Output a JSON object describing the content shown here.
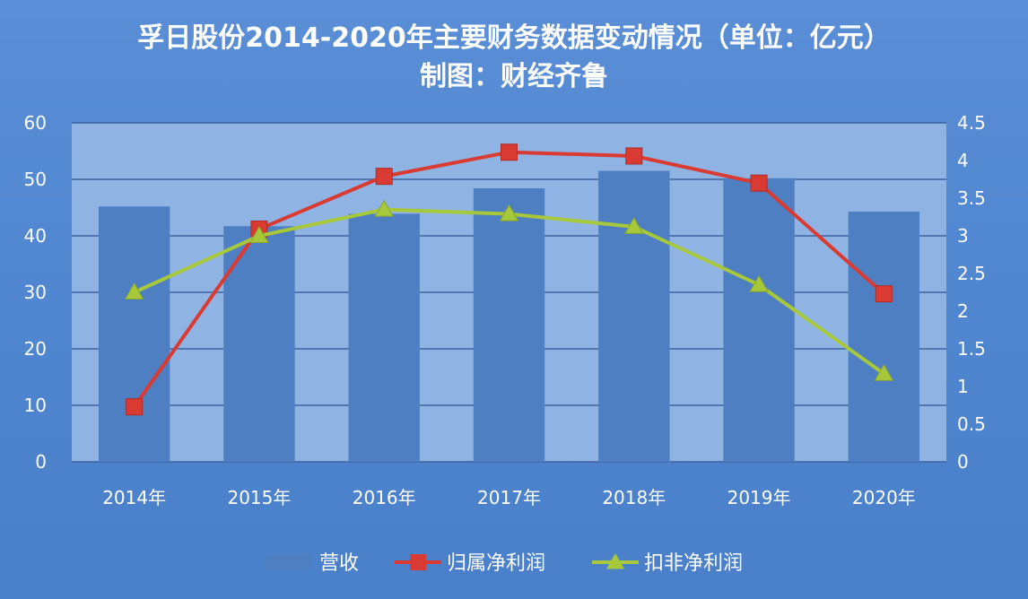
{
  "colors": {
    "page_bg": "#5588d0",
    "plot_bg": "#8fb3e3",
    "bar": "#4e7fc2",
    "line_red": "#d93b32",
    "line_green": "#a7c83b",
    "grid": "#3f63a0",
    "text": "#ffffff"
  },
  "chart_data": {
    "type": "bar",
    "title": "孚日股份2014-2020年主要财务数据变动情况（单位：亿元）",
    "subtitle": "制图：财经齐鲁",
    "categories": [
      "2014年",
      "2015年",
      "2016年",
      "2017年",
      "2018年",
      "2019年",
      "2020年"
    ],
    "series": [
      {
        "name": "营收",
        "type": "bar",
        "axis": "left",
        "values": [
          45.2,
          41.7,
          43.9,
          48.4,
          51.5,
          50.2,
          44.3
        ]
      },
      {
        "name": "归属净利润",
        "type": "line",
        "marker": "square",
        "axis": "right",
        "values": [
          0.73,
          3.09,
          3.79,
          4.11,
          4.06,
          3.7,
          2.23
        ]
      },
      {
        "name": "扣非净利润",
        "type": "line",
        "marker": "triangle",
        "axis": "right",
        "values": [
          2.25,
          3.0,
          3.35,
          3.29,
          3.12,
          2.35,
          1.17
        ]
      }
    ],
    "y_left": {
      "range": [
        0,
        60
      ],
      "ticks": [
        "0",
        "10",
        "20",
        "30",
        "40",
        "50",
        "60"
      ]
    },
    "y_right": {
      "range": [
        0,
        4.5
      ],
      "ticks": [
        "0",
        "0.5",
        "1",
        "1.5",
        "2",
        "2.5",
        "3",
        "3.5",
        "4",
        "4.5"
      ]
    },
    "grid": true,
    "legend_position": "bottom"
  }
}
